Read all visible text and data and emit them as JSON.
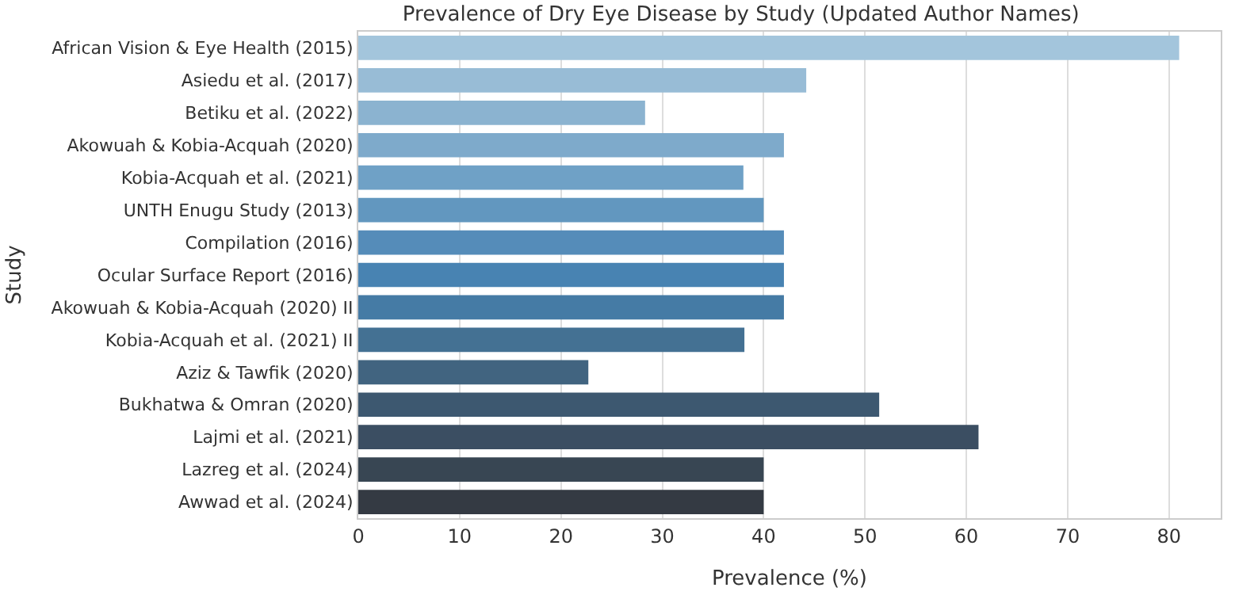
{
  "chart_data": {
    "type": "bar",
    "orientation": "horizontal",
    "title": "Prevalence of Dry Eye Disease by Study (Updated Author Names)",
    "xlabel": "Prevalence (%)",
    "ylabel": "Study",
    "categories": [
      "African Vision & Eye Health (2015)",
      "Asiedu et al. (2017)",
      "Betiku et al. (2022)",
      "Akowuah & Kobia-Acquah (2020)",
      "Kobia-Acquah et al. (2021)",
      "UNTH Enugu Study (2013)",
      "Compilation (2016)",
      "Ocular Surface Report (2016)",
      "Akowuah & Kobia-Acquah (2020) II",
      "Kobia-Acquah et al. (2021) II",
      "Aziz & Tawfik (2020)",
      "Bukhatwa & Omran (2020)",
      "Lajmi et al. (2021)",
      "Lazreg et al. (2024)",
      "Awwad et al. (2024)"
    ],
    "values": [
      81,
      44.2,
      28.3,
      42,
      38,
      40,
      42,
      42,
      42,
      38.1,
      22.7,
      51.4,
      61.2,
      40,
      40
    ],
    "colors": [
      "#a3c5dc",
      "#98bcd6",
      "#8bb3d0",
      "#7eaacb",
      "#6fa1c6",
      "#6297bf",
      "#558cb9",
      "#4883b2",
      "#457ba5",
      "#447193",
      "#416480",
      "#3d5870",
      "#3b4e62",
      "#384653",
      "#343a43"
    ],
    "xlim": [
      0,
      85.1
    ],
    "xticks": [
      0,
      10,
      20,
      30,
      40,
      50,
      60,
      70,
      80
    ],
    "grid": "x",
    "legend": false
  }
}
